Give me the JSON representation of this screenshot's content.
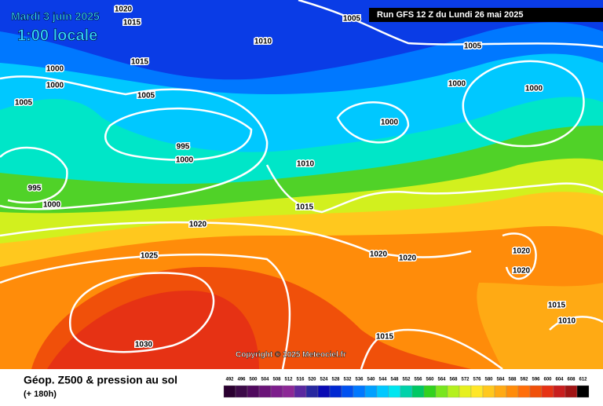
{
  "header": {
    "date": "Mardi 3 juin 2025",
    "time": "1:00 locale",
    "run": "Run GFS 12 Z du Lundi 26 mai 2025"
  },
  "footer": {
    "title": "Géop. Z500 & pression au sol",
    "subtitle": "(+ 180h)",
    "copyright": "Copyright © 2025 Meteociel.fr"
  },
  "legend": {
    "values": [
      492,
      496,
      500,
      504,
      508,
      512,
      516,
      520,
      524,
      528,
      532,
      536,
      540,
      544,
      548,
      552,
      556,
      560,
      564,
      568,
      572,
      576,
      580,
      584,
      588,
      592,
      596,
      600,
      604,
      608,
      612
    ],
    "colors": [
      "#2a0030",
      "#3c0a48",
      "#500a5e",
      "#6a1478",
      "#7d1e8c",
      "#8c2896",
      "#5a28a0",
      "#2828a0",
      "#0a0ab4",
      "#0028d2",
      "#0050f0",
      "#0078ff",
      "#00a0ff",
      "#00c8ff",
      "#00e6f0",
      "#00d2aa",
      "#00c864",
      "#32d21e",
      "#78e61e",
      "#b4f01e",
      "#e6f01e",
      "#ffe628",
      "#ffc81e",
      "#ffaa14",
      "#ff8c0a",
      "#ff6e0a",
      "#f0500a",
      "#e63214",
      "#c81e1e",
      "#a01414",
      "#000000"
    ]
  },
  "isobar_labels": [
    1020,
    1015,
    1005,
    1010,
    1005,
    1015,
    1000,
    1000,
    1000,
    1000,
    1005,
    1005,
    1000,
    995,
    1000,
    1010,
    995,
    1000,
    1015,
    1020,
    1025,
    1020,
    1020,
    1020,
    1020,
    1015,
    1010,
    1030,
    1015
  ]
}
